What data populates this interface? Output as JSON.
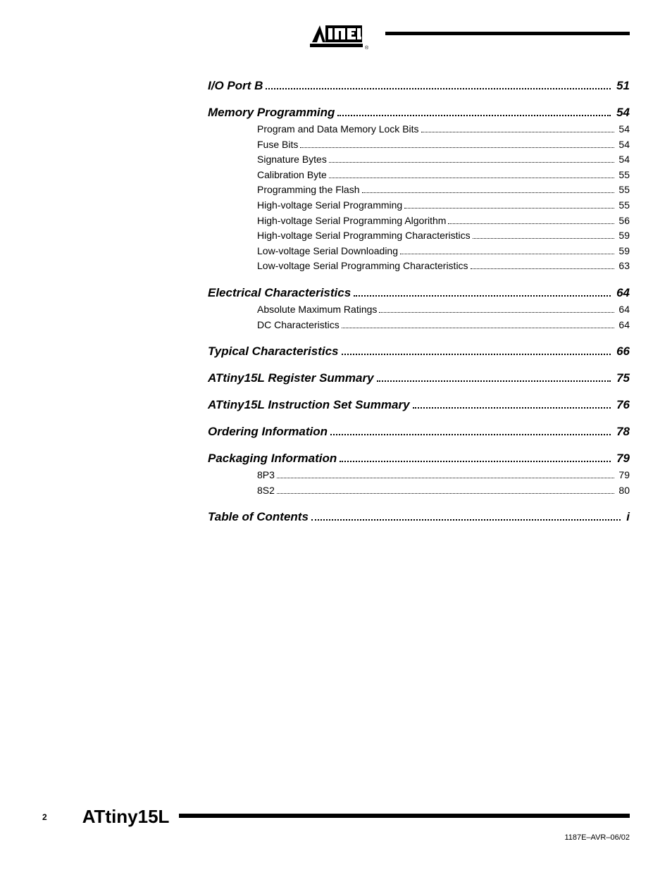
{
  "logo_text": "ATMEL",
  "sections": [
    {
      "title": "I/O Port B",
      "page": "51",
      "subs": []
    },
    {
      "title": "Memory Programming",
      "page": "54",
      "subs": [
        {
          "title": "Program and Data Memory Lock Bits",
          "page": "54"
        },
        {
          "title": "Fuse Bits",
          "page": "54"
        },
        {
          "title": "Signature Bytes",
          "page": "54"
        },
        {
          "title": "Calibration Byte",
          "page": "55"
        },
        {
          "title": "Programming the Flash",
          "page": "55"
        },
        {
          "title": "High-voltage Serial Programming",
          "page": "55"
        },
        {
          "title": "High-voltage Serial Programming Algorithm",
          "page": "56"
        },
        {
          "title": "High-voltage Serial Programming Characteristics",
          "page": "59"
        },
        {
          "title": "Low-voltage Serial Downloading",
          "page": "59"
        },
        {
          "title": "Low-voltage Serial Programming Characteristics",
          "page": "63"
        }
      ]
    },
    {
      "title": "Electrical Characteristics",
      "page": "64",
      "subs": [
        {
          "title": "Absolute Maximum Ratings",
          "page": "64"
        },
        {
          "title": "DC Characteristics",
          "page": "64"
        }
      ]
    },
    {
      "title": "Typical Characteristics",
      "page": "66",
      "subs": []
    },
    {
      "title": "ATtiny15L Register Summary",
      "page": "75",
      "subs": []
    },
    {
      "title": "ATtiny15L Instruction Set Summary",
      "page": "76",
      "subs": []
    },
    {
      "title": "Ordering Information",
      "page": "78",
      "subs": []
    },
    {
      "title": "Packaging Information",
      "page": "79",
      "subs": [
        {
          "title": "8P3",
          "page": "79"
        },
        {
          "title": "8S2",
          "page": "80"
        }
      ]
    },
    {
      "title": "Table of Contents",
      "page": "i",
      "subs": []
    }
  ],
  "footer": {
    "page_number": "2",
    "product": "ATtiny15L",
    "doc_ref": "1187E–AVR–06/02"
  },
  "colors": {
    "text": "#000000",
    "background": "#ffffff"
  },
  "fonts": {
    "heading_size": 17,
    "sub_size": 14,
    "product_size": 26,
    "pagenum_size": 12,
    "docref_size": 11
  }
}
